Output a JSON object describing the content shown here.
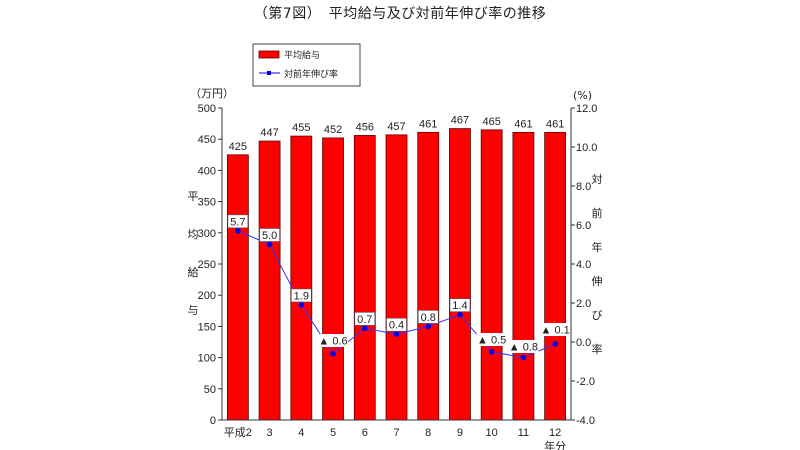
{
  "title": "（第7図）　平均給与及び対前年伸び率の推移",
  "legend": {
    "bar_label": "平均給与",
    "line_label": "対前年伸び率"
  },
  "axes": {
    "left_unit": "（万円）",
    "right_unit": "(%)",
    "left_title_chars": [
      "平",
      "均",
      "給",
      "与"
    ],
    "right_title_chars": [
      "対",
      "前",
      "年",
      "伸",
      "び",
      "率"
    ],
    "x_suffix": "年分"
  },
  "colors": {
    "bar": "#ff0000",
    "bar_border": "#600000",
    "line": "#3333ff",
    "marker": "#0000ee"
  },
  "chart_data": {
    "type": "bar",
    "title": "（第7図）　平均給与及び対前年伸び率の推移",
    "xlabel": "年分",
    "ylabel": "平均給与（万円）",
    "y2label": "対前年伸び率(%)",
    "categories": [
      "平成2",
      "3",
      "4",
      "5",
      "6",
      "7",
      "8",
      "9",
      "10",
      "11",
      "12"
    ],
    "series": [
      {
        "name": "平均給与",
        "type": "bar",
        "axis": "left",
        "values": [
          425,
          447,
          455,
          452,
          456,
          457,
          461,
          467,
          465,
          461,
          461
        ]
      },
      {
        "name": "対前年伸び率",
        "type": "line",
        "axis": "right",
        "values": [
          5.7,
          5.0,
          1.9,
          -0.6,
          0.7,
          0.4,
          0.8,
          1.4,
          -0.5,
          -0.8,
          -0.1
        ]
      }
    ],
    "bar_labels": [
      "425",
      "447",
      "455",
      "452",
      "456",
      "457",
      "461",
      "467",
      "465",
      "461",
      "461"
    ],
    "line_labels": [
      "5.7",
      "5.0",
      "1.9",
      "▲ 0.6",
      "0.7",
      "0.4",
      "0.8",
      "1.4",
      "▲ 0.5",
      "▲ 0.8",
      "▲ 0.1"
    ],
    "ylim": [
      0,
      500
    ],
    "yticks": [
      0,
      50,
      100,
      150,
      200,
      250,
      300,
      350,
      400,
      450,
      500
    ],
    "y2lim": [
      -4.0,
      12.0
    ],
    "y2ticks": [
      "-4.0",
      "-2.0",
      "0.0",
      "2.0",
      "4.0",
      "6.0",
      "8.0",
      "10.0",
      "12.0"
    ],
    "legend_position": "top-left",
    "grid": false
  }
}
